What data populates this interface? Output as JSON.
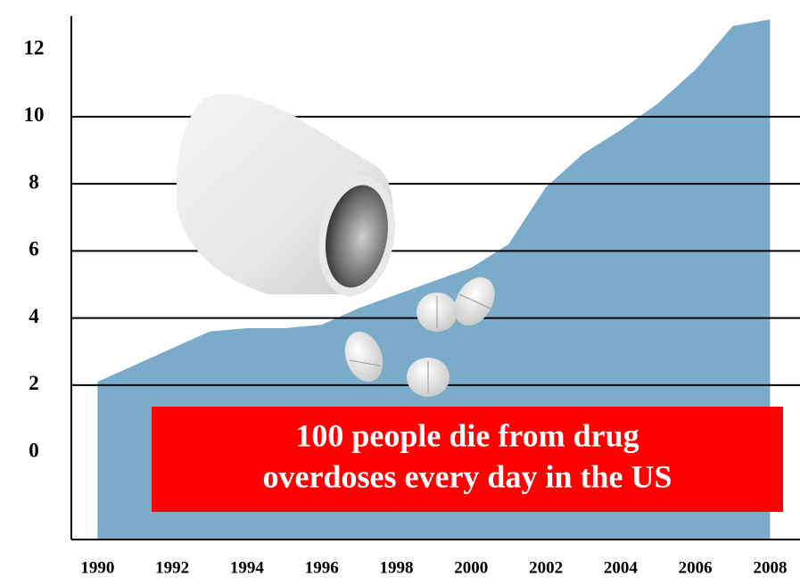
{
  "chart_data": {
    "type": "area",
    "x": [
      1990,
      1991,
      1992,
      1993,
      1994,
      1995,
      1996,
      1997,
      1998,
      1999,
      2000,
      2001,
      2002,
      2003,
      2004,
      2005,
      2006,
      2007,
      2008
    ],
    "series": [
      {
        "color": "#7aabc8",
        "values": [
          2.1,
          2.6,
          3.1,
          3.6,
          3.7,
          3.7,
          3.8,
          4.3,
          4.7,
          5.1,
          5.5,
          6.2,
          7.9,
          8.9,
          9.6,
          10.4,
          11.4,
          12.7,
          12.9
        ]
      }
    ],
    "xlim": [
      1989.3,
      2008.8
    ],
    "xticks": [
      1990,
      1992,
      1994,
      1996,
      1998,
      2000,
      2002,
      2004,
      2006,
      2008
    ],
    "ylim": [
      -2.6,
      13
    ],
    "yticks": [
      0,
      2,
      4,
      6,
      8,
      10,
      12
    ],
    "grid_lines": [
      2,
      4,
      6,
      8,
      10
    ],
    "annotation": [
      "100 people die from drug",
      "overdoses every day in the US"
    ]
  }
}
